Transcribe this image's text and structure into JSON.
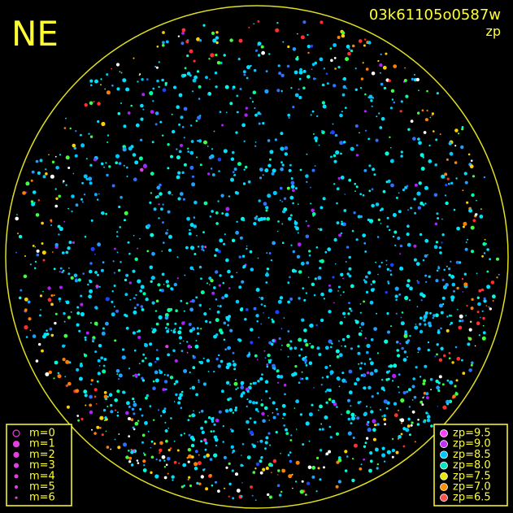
{
  "corner_label": "NE",
  "title": "03k61105o0587w",
  "subtitle": "zp",
  "magnitude_legend": [
    "m=0",
    "m=1",
    "m=2",
    "m=3",
    "m=4",
    "m=5",
    "m=6"
  ],
  "zeropoint_legend": [
    "zp=9.5",
    "zp=9.0",
    "zp=8.5",
    "zp=8.0",
    "zp=7.5",
    "zp=7.0",
    "zp=6.5"
  ]
}
